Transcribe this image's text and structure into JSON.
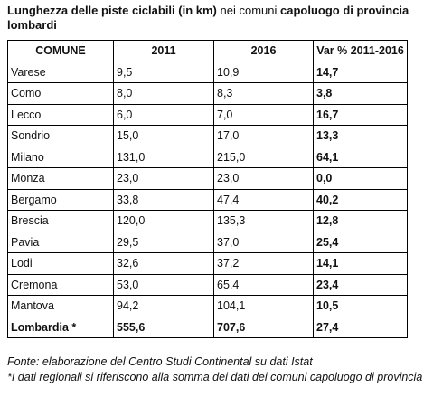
{
  "title": {
    "bold_start": "Lunghezza delle piste ciclabili (in km)",
    "light_middle": " nei comuni ",
    "bold_end": "capoluogo di provincia lombardi"
  },
  "table": {
    "headers": [
      "COMUNE",
      "2011",
      "2016",
      "Var % 2011-2016"
    ],
    "rows": [
      {
        "comune": "Varese",
        "y2011": "9,5",
        "y2016": "10,9",
        "var": "14,7"
      },
      {
        "comune": "Como",
        "y2011": "8,0",
        "y2016": "8,3",
        "var": "3,8"
      },
      {
        "comune": "Lecco",
        "y2011": "6,0",
        "y2016": "7,0",
        "var": "16,7"
      },
      {
        "comune": "Sondrio",
        "y2011": "15,0",
        "y2016": "17,0",
        "var": "13,3"
      },
      {
        "comune": "Milano",
        "y2011": "131,0",
        "y2016": "215,0",
        "var": "64,1"
      },
      {
        "comune": "Monza",
        "y2011": "23,0",
        "y2016": "23,0",
        "var": "0,0"
      },
      {
        "comune": "Bergamo",
        "y2011": "33,8",
        "y2016": "47,4",
        "var": "40,2"
      },
      {
        "comune": "Brescia",
        "y2011": "120,0",
        "y2016": "135,3",
        "var": "12,8"
      },
      {
        "comune": "Pavia",
        "y2011": "29,5",
        "y2016": "37,0",
        "var": "25,4"
      },
      {
        "comune": "Lodi",
        "y2011": "32,6",
        "y2016": "37,2",
        "var": "14,1"
      },
      {
        "comune": "Cremona",
        "y2011": "53,0",
        "y2016": "65,4",
        "var": "23,4"
      },
      {
        "comune": "Mantova",
        "y2011": "94,2",
        "y2016": "104,1",
        "var": "10,5"
      }
    ],
    "total": {
      "comune": "Lombardia *",
      "y2011": "555,6",
      "y2016": "707,6",
      "var": "27,4"
    }
  },
  "source": "Fonte: elaborazione del Centro Studi Continental su dati Istat",
  "note": "*I dati regionali si riferiscono alla somma dei dati dei comuni capoluogo di provincia"
}
